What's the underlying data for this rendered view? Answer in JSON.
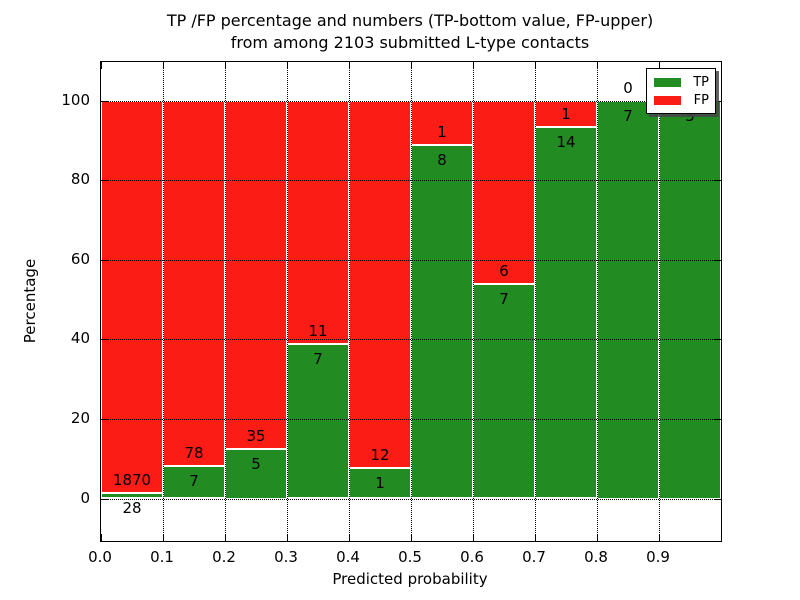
{
  "title": {
    "line1": "TP /FP percentage and numbers (TP-bottom value, FP-upper)",
    "line2": "from among 2103 submitted L-type contacts"
  },
  "axes": {
    "x_label": "Predicted probability",
    "y_label": "Percentage",
    "x_tick_labels": [
      "0.0",
      "0.1",
      "0.2",
      "0.3",
      "0.4",
      "0.5",
      "0.6",
      "0.7",
      "0.8",
      "0.9"
    ],
    "y_tick_labels": [
      "0",
      "20",
      "40",
      "60",
      "80",
      "100"
    ],
    "y_tick_values": [
      0,
      20,
      40,
      60,
      80,
      100
    ]
  },
  "legend": {
    "items": [
      {
        "label": "TP",
        "color": "#228b22"
      },
      {
        "label": "FP",
        "color": "#fb1d15"
      }
    ],
    "position": "upper right"
  },
  "chart_data": {
    "type": "bar",
    "stacked": true,
    "normalized_to_percent": true,
    "title": "TP /FP percentage and numbers (TP-bottom value, FP-upper) from among 2103 submitted L-type contacts",
    "xlabel": "Predicted probability",
    "ylabel": "Percentage",
    "total_contacts": 2103,
    "categories": [
      "0.0-0.1",
      "0.1-0.2",
      "0.2-0.3",
      "0.3-0.4",
      "0.4-0.5",
      "0.5-0.6",
      "0.6-0.7",
      "0.7-0.8",
      "0.8-0.9",
      "0.9-1.0"
    ],
    "bin_edges": [
      0.0,
      0.1,
      0.2,
      0.3,
      0.4,
      0.5,
      0.6,
      0.7,
      0.8,
      0.9,
      1.0
    ],
    "series": [
      {
        "name": "TP",
        "color": "#228b22",
        "counts": [
          28,
          7,
          5,
          7,
          1,
          8,
          7,
          14,
          7,
          5
        ]
      },
      {
        "name": "FP",
        "color": "#fb1d15",
        "counts": [
          1870,
          78,
          35,
          11,
          12,
          1,
          6,
          1,
          0,
          0
        ]
      }
    ],
    "tp_percentages": [
      1.5,
      8.2,
      12.5,
      38.9,
      7.7,
      88.9,
      53.8,
      93.3,
      100,
      100
    ],
    "xlim": [
      0.0,
      1.0
    ],
    "ylim": [
      -10.7,
      109.7
    ],
    "grid": true,
    "grid_style": "dotted",
    "legend_position": "upper right"
  }
}
